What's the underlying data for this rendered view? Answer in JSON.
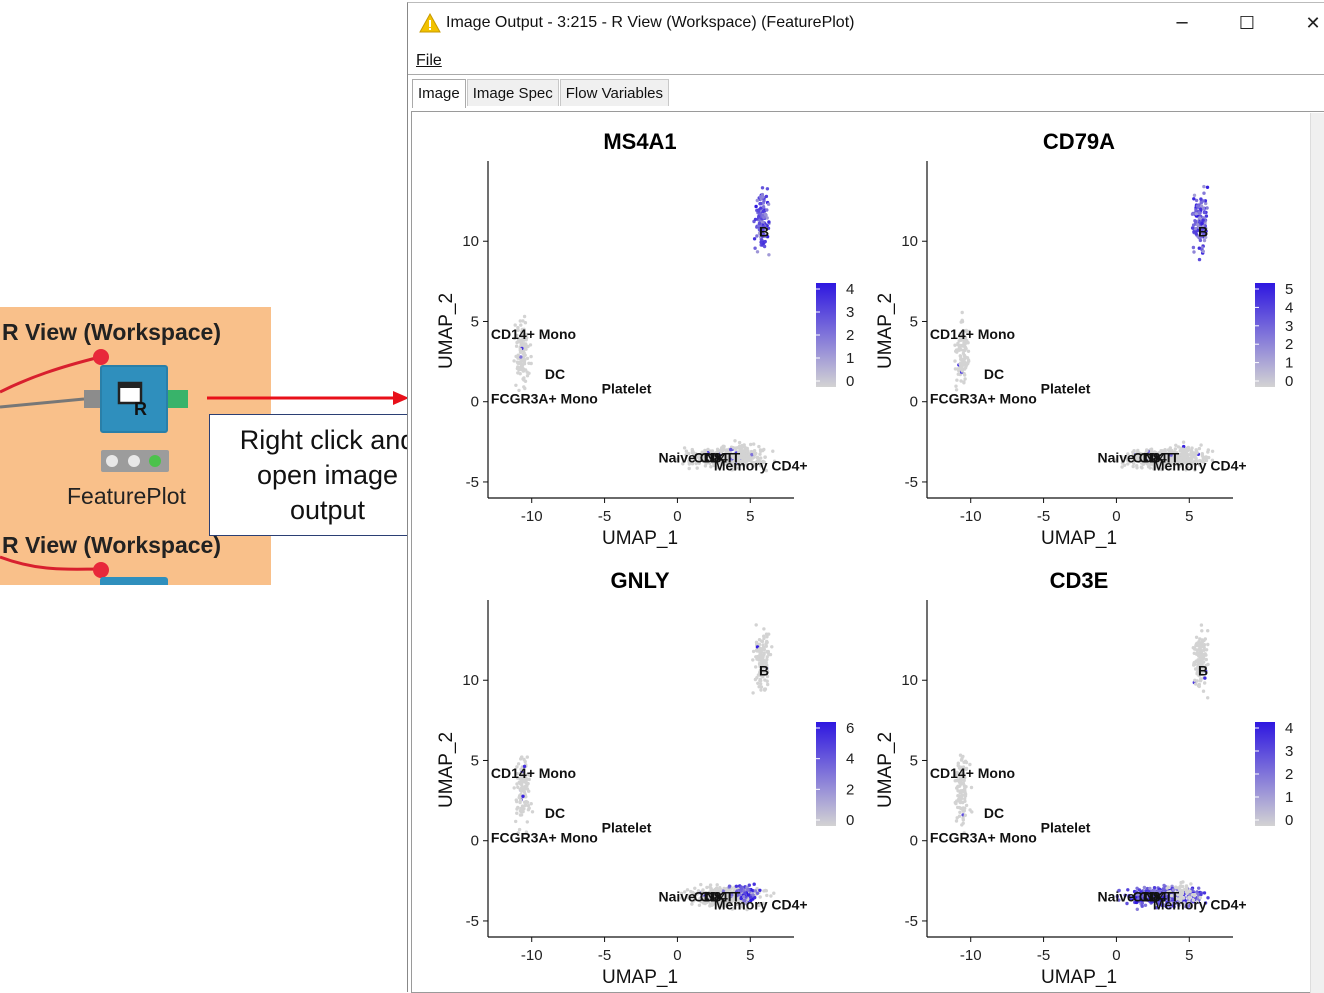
{
  "node": {
    "title_top": "R View (Workspace)",
    "title_bottom": "R View (Workspace)",
    "label": "FeaturePlot"
  },
  "callout": {
    "lines": [
      "Right click and",
      "open image",
      "output"
    ]
  },
  "window": {
    "title": "Image Output - 3:215 - R View (Workspace) (FeaturePlot)",
    "controls": {
      "minimize": "─",
      "maximize": "☐",
      "close": "✕"
    }
  },
  "menu": {
    "file": "File"
  },
  "tabs": [
    "Image",
    "Image Spec",
    "Flow Variables"
  ],
  "colors": {
    "high": "#2e17e0",
    "low": "#d3d3d3",
    "node_bg": "#f9c08a",
    "arrow": "#e8101a"
  },
  "chart_data": [
    {
      "type": "scatter",
      "title": "MS4A1",
      "xlabel": "UMAP_1",
      "ylabel": "UMAP_2",
      "x_ticks": [
        -10,
        -5,
        0,
        5
      ],
      "y_ticks": [
        -5,
        0,
        5,
        10
      ],
      "xlim": [
        -13,
        8
      ],
      "ylim": [
        -6,
        15
      ],
      "legend_ticks": [
        0,
        1,
        2,
        3,
        4
      ],
      "cluster_labels": [
        "B",
        "CD14+ Mono",
        "DC",
        "FCGR3A+ Mono",
        "Platelet",
        "Naive CD4 T",
        "CD8 T",
        "NK",
        "Memory CD4+"
      ],
      "expressed_in": "B"
    },
    {
      "type": "scatter",
      "title": "CD79A",
      "xlabel": "UMAP_1",
      "ylabel": "UMAP_2",
      "x_ticks": [
        -10,
        -5,
        0,
        5
      ],
      "y_ticks": [
        -5,
        0,
        5,
        10
      ],
      "xlim": [
        -13,
        8
      ],
      "ylim": [
        -6,
        15
      ],
      "legend_ticks": [
        0,
        1,
        2,
        3,
        4,
        5
      ],
      "cluster_labels": [
        "B",
        "CD14+ Mono",
        "DC",
        "FCGR3A+ Mono",
        "Platelet",
        "Naive CD4 T",
        "CD8 T",
        "NK",
        "Memory CD4+"
      ],
      "expressed_in": "B"
    },
    {
      "type": "scatter",
      "title": "GNLY",
      "xlabel": "UMAP_1",
      "ylabel": "UMAP_2",
      "x_ticks": [
        -10,
        -5,
        0,
        5
      ],
      "y_ticks": [
        -5,
        0,
        5,
        10
      ],
      "xlim": [
        -13,
        8
      ],
      "ylim": [
        -6,
        15
      ],
      "legend_ticks": [
        0,
        2,
        4,
        6
      ],
      "cluster_labels": [
        "B",
        "CD14+ Mono",
        "DC",
        "FCGR3A+ Mono",
        "Platelet",
        "Naive CD4 T",
        "CD8 T",
        "NK",
        "Memory CD4+"
      ],
      "expressed_in": "NK"
    },
    {
      "type": "scatter",
      "title": "CD3E",
      "xlabel": "UMAP_1",
      "ylabel": "UMAP_2",
      "x_ticks": [
        -10,
        -5,
        0,
        5
      ],
      "y_ticks": [
        -5,
        0,
        5,
        10
      ],
      "xlim": [
        -13,
        8
      ],
      "ylim": [
        -6,
        15
      ],
      "legend_ticks": [
        0,
        1,
        2,
        3,
        4
      ],
      "cluster_labels": [
        "B",
        "CD14+ Mono",
        "DC",
        "FCGR3A+ Mono",
        "Platelet",
        "Naive CD4 T",
        "CD8 T",
        "NK",
        "Memory CD4+"
      ],
      "expressed_in": "T"
    }
  ]
}
